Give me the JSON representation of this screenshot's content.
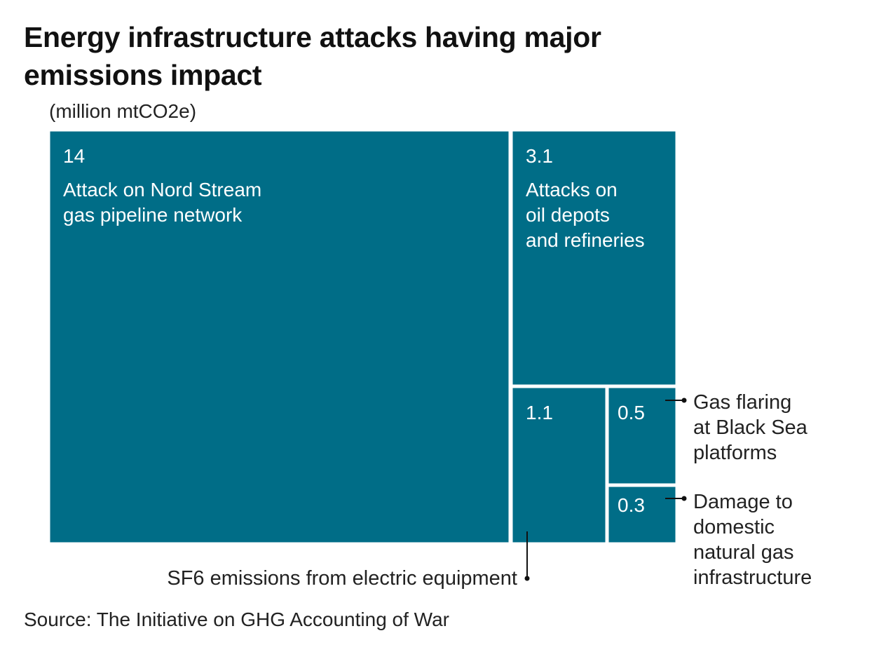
{
  "title": "Energy infrastructure attacks having major emissions impact",
  "subtitle": "(million mtCO2e)",
  "source": "Source: The Initiative on GHG Accounting of War",
  "colors": {
    "tile": "#006d87",
    "tile_border": "#ffffff",
    "text": "#222222",
    "leader": "#111111"
  },
  "chart_data": {
    "type": "treemap",
    "unit": "million mtCO2e",
    "items": [
      {
        "id": "nord-stream",
        "value": 14,
        "value_label": "14",
        "label_lines": [
          "Attack on Nord Stream",
          "gas pipeline network"
        ],
        "label_position": "inside"
      },
      {
        "id": "oil-depots",
        "value": 3.1,
        "value_label": "3.1",
        "label_lines": [
          "Attacks on",
          "oil depots",
          "and refineries"
        ],
        "label_position": "inside"
      },
      {
        "id": "sf6",
        "value": 1.1,
        "value_label": "1.1",
        "label_lines": [
          "SF6 emissions from electric equipment"
        ],
        "label_position": "callout-below"
      },
      {
        "id": "gas-flaring",
        "value": 0.5,
        "value_label": "0.5",
        "label_lines": [
          "Gas flaring",
          "at Black Sea",
          "platforms"
        ],
        "label_position": "callout-right"
      },
      {
        "id": "gas-infrastructure",
        "value": 0.3,
        "value_label": "0.3",
        "label_lines": [
          "Damage to",
          "domestic",
          "natural gas",
          "infrastructure"
        ],
        "label_position": "callout-right"
      }
    ]
  }
}
